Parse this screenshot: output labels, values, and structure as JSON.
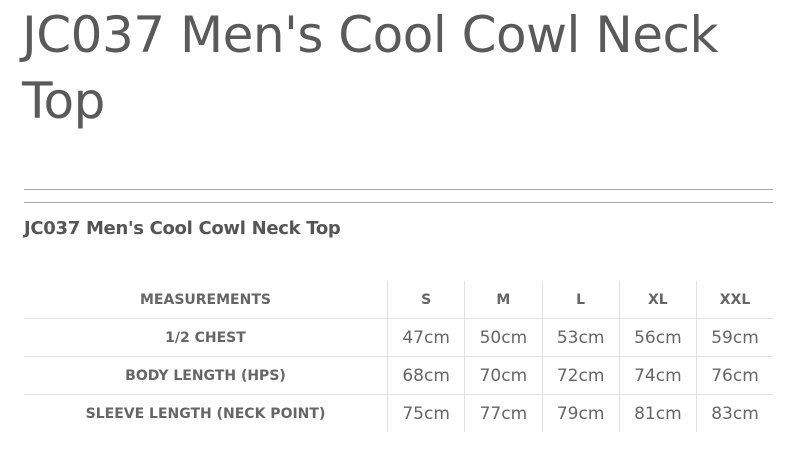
{
  "page_title": "JC037 Men's Cool Cowl Neck Top",
  "section_title": "JC037 Men's Cool Cowl Neck Top",
  "table": {
    "header": [
      "MEASUREMENTS",
      "S",
      "M",
      "L",
      "XL",
      "XXL"
    ],
    "rows": [
      {
        "label": "1/2 CHEST",
        "values": [
          "47cm",
          "50cm",
          "53cm",
          "56cm",
          "59cm"
        ]
      },
      {
        "label": "BODY LENGTH (HPS)",
        "values": [
          "68cm",
          "70cm",
          "72cm",
          "74cm",
          "76cm"
        ]
      },
      {
        "label": "SLEEVE LENGTH (NECK POINT)",
        "values": [
          "75cm",
          "77cm",
          "79cm",
          "81cm",
          "83cm"
        ]
      }
    ]
  }
}
